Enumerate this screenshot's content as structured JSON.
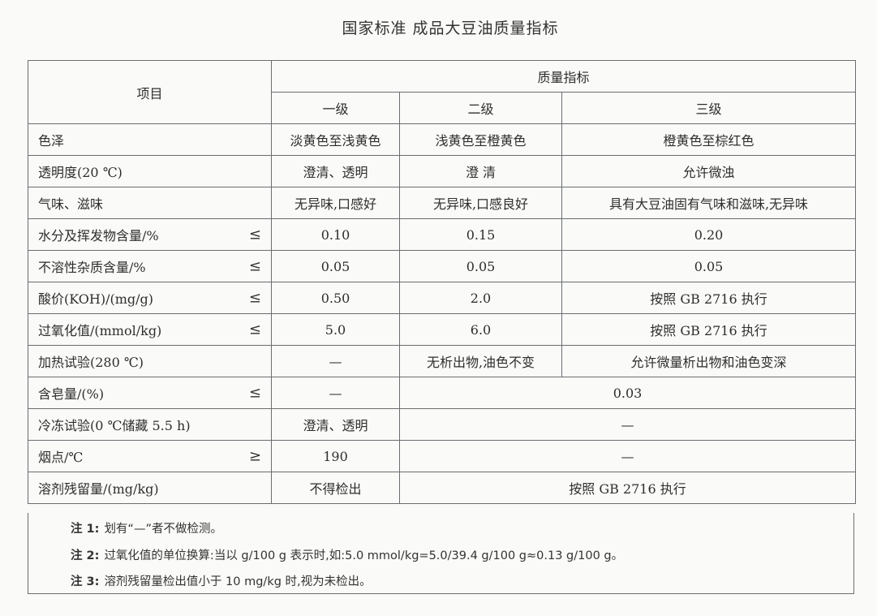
{
  "title": "国家标准  成品大豆油质量指标",
  "header": {
    "item": "项目",
    "quality": "质量指标",
    "grade1": "一级",
    "grade2": "二级",
    "grade3": "三级"
  },
  "rows": [
    {
      "item": "色泽",
      "op": "",
      "g1": "淡黄色至浅黄色",
      "g2": "浅黄色至橙黄色",
      "g3": "橙黄色至棕红色"
    },
    {
      "item": "透明度(20 ℃)",
      "op": "",
      "g1": "澄清、透明",
      "g2": "澄 清",
      "g3": "允许微浊"
    },
    {
      "item": "气味、滋味",
      "op": "",
      "g1": "无异味,口感好",
      "g2": "无异味,口感良好",
      "g3": "具有大豆油固有气味和滋味,无异味"
    },
    {
      "item": "水分及挥发物含量/%",
      "op": "≤",
      "g1": "0.10",
      "g2": "0.15",
      "g3": "0.20"
    },
    {
      "item": "不溶性杂质含量/%",
      "op": "≤",
      "g1": "0.05",
      "g2": "0.05",
      "g3": "0.05"
    },
    {
      "item": "酸价(KOH)/(mg/g)",
      "op": "≤",
      "g1": "0.50",
      "g2": "2.0",
      "g3": "按照 GB 2716 执行"
    },
    {
      "item": "过氧化值/(mmol/kg)",
      "op": "≤",
      "g1": "5.0",
      "g2": "6.0",
      "g3": "按照 GB 2716 执行"
    },
    {
      "item": "加热试验(280 ℃)",
      "op": "",
      "g1": "—",
      "g2": "无析出物,油色不变",
      "g3": "允许微量析出物和油色变深"
    },
    {
      "item": "含皂量/(%)",
      "op": "≤",
      "g1": "—",
      "g23": "0.03"
    },
    {
      "item": "冷冻试验(0 ℃储藏 5.5 h)",
      "op": "",
      "g1": "澄清、透明",
      "g23": "—"
    },
    {
      "item": "烟点/℃",
      "op": "≥",
      "g1": "190",
      "g23": "—"
    },
    {
      "item": "溶剂残留量/(mg/kg)",
      "op": "",
      "g1": "不得检出",
      "g23": "按照 GB 2716 执行"
    }
  ],
  "notes": [
    {
      "label": "注 1:",
      "text": "划有“—”者不做检测。"
    },
    {
      "label": "注 2:",
      "text": "过氧化值的单位换算:当以 g/100 g 表示时,如:5.0 mmol/kg=5.0/39.4 g/100 g≈0.13 g/100 g。"
    },
    {
      "label": "注 3:",
      "text": "溶剂残留量检出值小于 10 mg/kg 时,视为未检出。"
    }
  ]
}
